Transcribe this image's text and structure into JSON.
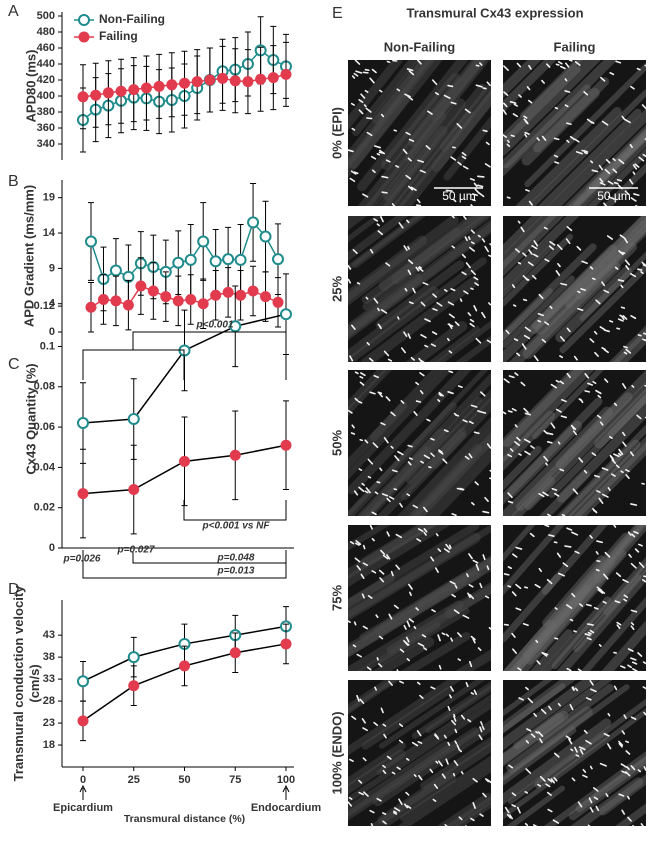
{
  "chart_data": [
    {
      "type": "line",
      "panel": "A",
      "ylabel": "APD80 (ms)",
      "categories": [
        null,
        null,
        null,
        null,
        null,
        null,
        null,
        null,
        null,
        null,
        null,
        null,
        null,
        null,
        null,
        null,
        null
      ],
      "ylim": [
        320,
        505
      ],
      "yticks": [
        340,
        360,
        380,
        400,
        420,
        440,
        460,
        480,
        500
      ],
      "legend": "upper left",
      "series": [
        {
          "name": "Non-Failing",
          "color": "#1f8b8c",
          "marker": "open",
          "values": [
            370,
            383,
            388,
            394,
            398,
            397,
            393,
            395,
            400,
            410,
            420,
            431,
            433,
            440,
            457,
            445,
            437
          ],
          "errors": [
            40,
            40,
            40,
            40,
            40,
            40,
            40,
            40,
            40,
            40,
            40,
            40,
            40,
            40,
            42,
            42,
            40
          ]
        },
        {
          "name": "Failing",
          "color": "#e23b4e",
          "marker": "filled",
          "values": [
            399,
            401,
            404,
            406,
            408,
            410,
            412,
            414,
            416,
            418,
            420,
            422,
            419,
            418,
            421,
            423,
            427
          ],
          "errors": [
            40,
            40,
            40,
            40,
            40,
            40,
            40,
            40,
            40,
            40,
            40,
            40,
            40,
            40,
            40,
            40,
            40
          ]
        }
      ]
    },
    {
      "type": "line",
      "panel": "B",
      "ylabel": "APD Gradient (ms/mm)",
      "categories": [
        null,
        null,
        null,
        null,
        null,
        null,
        null,
        null,
        null,
        null,
        null,
        null,
        null,
        null,
        null,
        null
      ],
      "ylim": [
        0,
        21.5
      ],
      "yticks": [
        0,
        4,
        9,
        14,
        19
      ],
      "series": [
        {
          "name": "Non-Failing",
          "color": "#1f8b8c",
          "marker": "open",
          "values": [
            12.8,
            7.5,
            8.7,
            7.8,
            9.7,
            9.2,
            8.5,
            9.8,
            10.2,
            12.8,
            10.0,
            10.3,
            10.2,
            15.5,
            13.5,
            10.3
          ],
          "errors": [
            5.5,
            4.5,
            4.5,
            4.5,
            4.5,
            4.5,
            4.5,
            4.5,
            5,
            5.5,
            4.5,
            4.5,
            5,
            5.5,
            5,
            5
          ]
        },
        {
          "name": "Failing",
          "color": "#e23b4e",
          "marker": "filled",
          "values": [
            3.5,
            4.6,
            4.4,
            3.8,
            6.5,
            5.8,
            5.0,
            4.4,
            4.6,
            4.0,
            5.2,
            5.6,
            5.2,
            5.8,
            5.0,
            4.2
          ],
          "errors": [
            3.5,
            3.5,
            3.5,
            3.5,
            4,
            4,
            3.5,
            3.5,
            3.5,
            3.5,
            3.5,
            3.5,
            3.5,
            3.5,
            3.5,
            3.5
          ]
        }
      ]
    },
    {
      "type": "line",
      "panel": "C",
      "ylabel": "Cx43 Quantity (%)",
      "x": [
        0,
        25,
        50,
        75,
        100
      ],
      "xlim": [
        0,
        100
      ],
      "ylim": [
        0,
        0.128
      ],
      "yticks": [
        0,
        0.02,
        0.04,
        0.06,
        0.08,
        0.1,
        0.12
      ],
      "line_color": "#000000",
      "series": [
        {
          "name": "Non-Failing",
          "color": "#1f8b8c",
          "marker": "open",
          "values": [
            0.062,
            0.064,
            0.098,
            0.11,
            0.116
          ],
          "errors": [
            0.02,
            0.02,
            0.02,
            0.02,
            0.02
          ]
        },
        {
          "name": "Failing",
          "color": "#e23b4e",
          "marker": "filled",
          "values": [
            0.027,
            0.029,
            0.043,
            0.046,
            0.051
          ],
          "errors": [
            0.022,
            0.022,
            0.022,
            0.022,
            0.022
          ]
        }
      ],
      "annotations": [
        "p<0.001",
        "p<0.001 vs NF",
        "p=0.026",
        "p=0.027",
        "p=0.048",
        "p=0.013"
      ]
    },
    {
      "type": "line",
      "panel": "D",
      "ylabel": "Transmural conduction velocity (cm/s)",
      "xlabel": "Transmural distance (%)",
      "x": [
        0,
        25,
        50,
        75,
        100
      ],
      "xlim": [
        0,
        100
      ],
      "xticks": [
        0,
        25,
        50,
        75,
        100
      ],
      "ylim": [
        13,
        51
      ],
      "yticks": [
        18,
        23,
        28,
        33,
        38,
        43
      ],
      "line_color": "#000000",
      "series": [
        {
          "name": "Non-Failing",
          "color": "#1f8b8c",
          "marker": "open",
          "values": [
            32.5,
            38,
            41,
            43,
            45
          ],
          "errors": [
            4.5,
            4.5,
            4.5,
            4.5,
            4.5
          ]
        },
        {
          "name": "Failing",
          "color": "#e23b4e",
          "marker": "filled",
          "values": [
            23.5,
            31.5,
            36,
            39,
            41
          ],
          "errors": [
            4.5,
            4.5,
            4.5,
            4.5,
            4.5
          ]
        }
      ],
      "x_annotations": [
        "Epicardium",
        "Endocardium"
      ]
    }
  ],
  "panel_e": {
    "panel": "E",
    "title": "Transmural Cx43 expression",
    "columns": [
      "Non-Failing",
      "Failing"
    ],
    "rows": [
      "0% (EPI)",
      "25%",
      "50%",
      "75%",
      "100% (ENDO)"
    ],
    "scale_bar": "50 µm"
  }
}
